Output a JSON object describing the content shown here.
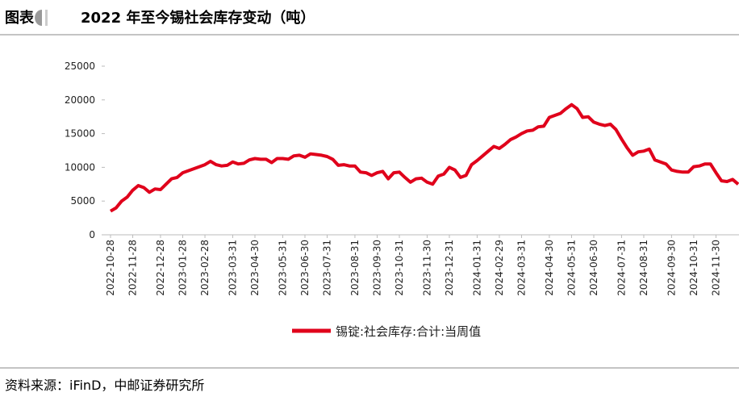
{
  "header": {
    "label": "图表"
  },
  "chart_data": {
    "type": "line",
    "title": "2022 年至今锡社会库存变动（吨）",
    "source": "资料来源：iFinD，中邮证券研究所",
    "categories": [
      "2022-10-28",
      null,
      null,
      null,
      "2022-11-28",
      null,
      null,
      null,
      null,
      "2022-12-28",
      null,
      null,
      null,
      "2023-01-28",
      null,
      null,
      null,
      "2023-02-28",
      null,
      null,
      null,
      null,
      "2023-03-31",
      null,
      null,
      null,
      "2023-04-30",
      null,
      null,
      null,
      null,
      "2023-05-31",
      null,
      null,
      null,
      "2023-06-30",
      null,
      null,
      null,
      "2023-07-31",
      null,
      null,
      null,
      null,
      "2023-08-31",
      null,
      null,
      null,
      "2023-09-30",
      null,
      null,
      null,
      "2023-10-31",
      null,
      null,
      null,
      null,
      "2023-11-30",
      null,
      null,
      null,
      "2023-12-31",
      null,
      null,
      null,
      null,
      "2024-01-31",
      null,
      null,
      null,
      "2024-02-29",
      null,
      null,
      null,
      "2024-03-31",
      null,
      null,
      null,
      null,
      "2024-04-30",
      null,
      null,
      null,
      "2024-05-31",
      null,
      null,
      null,
      "2024-06-30",
      null,
      null,
      null,
      null,
      "2024-07-31",
      null,
      null,
      null,
      "2024-08-31",
      null,
      null,
      null,
      null,
      "2024-09-30",
      null,
      null,
      null,
      "2024-10-31",
      null,
      null,
      null,
      "2024-11-30",
      null,
      null,
      null,
      null
    ],
    "series": [
      {
        "name": "锡锭:社会库存:合计:当周值",
        "color": "#e0001b",
        "values": [
          3500,
          4000,
          5000,
          5600,
          6600,
          7300,
          7000,
          6300,
          6800,
          6700,
          7500,
          8300,
          8500,
          9200,
          9500,
          9800,
          10100,
          10400,
          10900,
          10400,
          10200,
          10300,
          10800,
          10500,
          10600,
          11100,
          11300,
          11200,
          11200,
          10700,
          11300,
          11300,
          11200,
          11700,
          11800,
          11500,
          12000,
          11900,
          11800,
          11600,
          11200,
          10300,
          10400,
          10200,
          10200,
          9300,
          9200,
          8800,
          9200,
          9400,
          8300,
          9200,
          9300,
          8500,
          7800,
          8300,
          8400,
          7800,
          7500,
          8700,
          9000,
          10000,
          9600,
          8500,
          8800,
          10400,
          11000,
          11700,
          12400,
          13100,
          12800,
          13400,
          14100,
          14500,
          15000,
          15400,
          15500,
          16000,
          16100,
          17400,
          17700,
          18000,
          18700,
          19300,
          18700,
          17400,
          17500,
          16700,
          16400,
          16200,
          16400,
          15600,
          14200,
          12900,
          11800,
          12300,
          12400,
          12700,
          11100,
          10800,
          10500,
          9600,
          9400,
          9300,
          9300,
          10100,
          10200,
          10500,
          10500,
          9200,
          8000,
          7900,
          8200,
          7500
        ]
      }
    ],
    "ylim": [
      0,
      25000
    ],
    "yticks": [
      0,
      5000,
      10000,
      15000,
      20000,
      25000
    ]
  }
}
